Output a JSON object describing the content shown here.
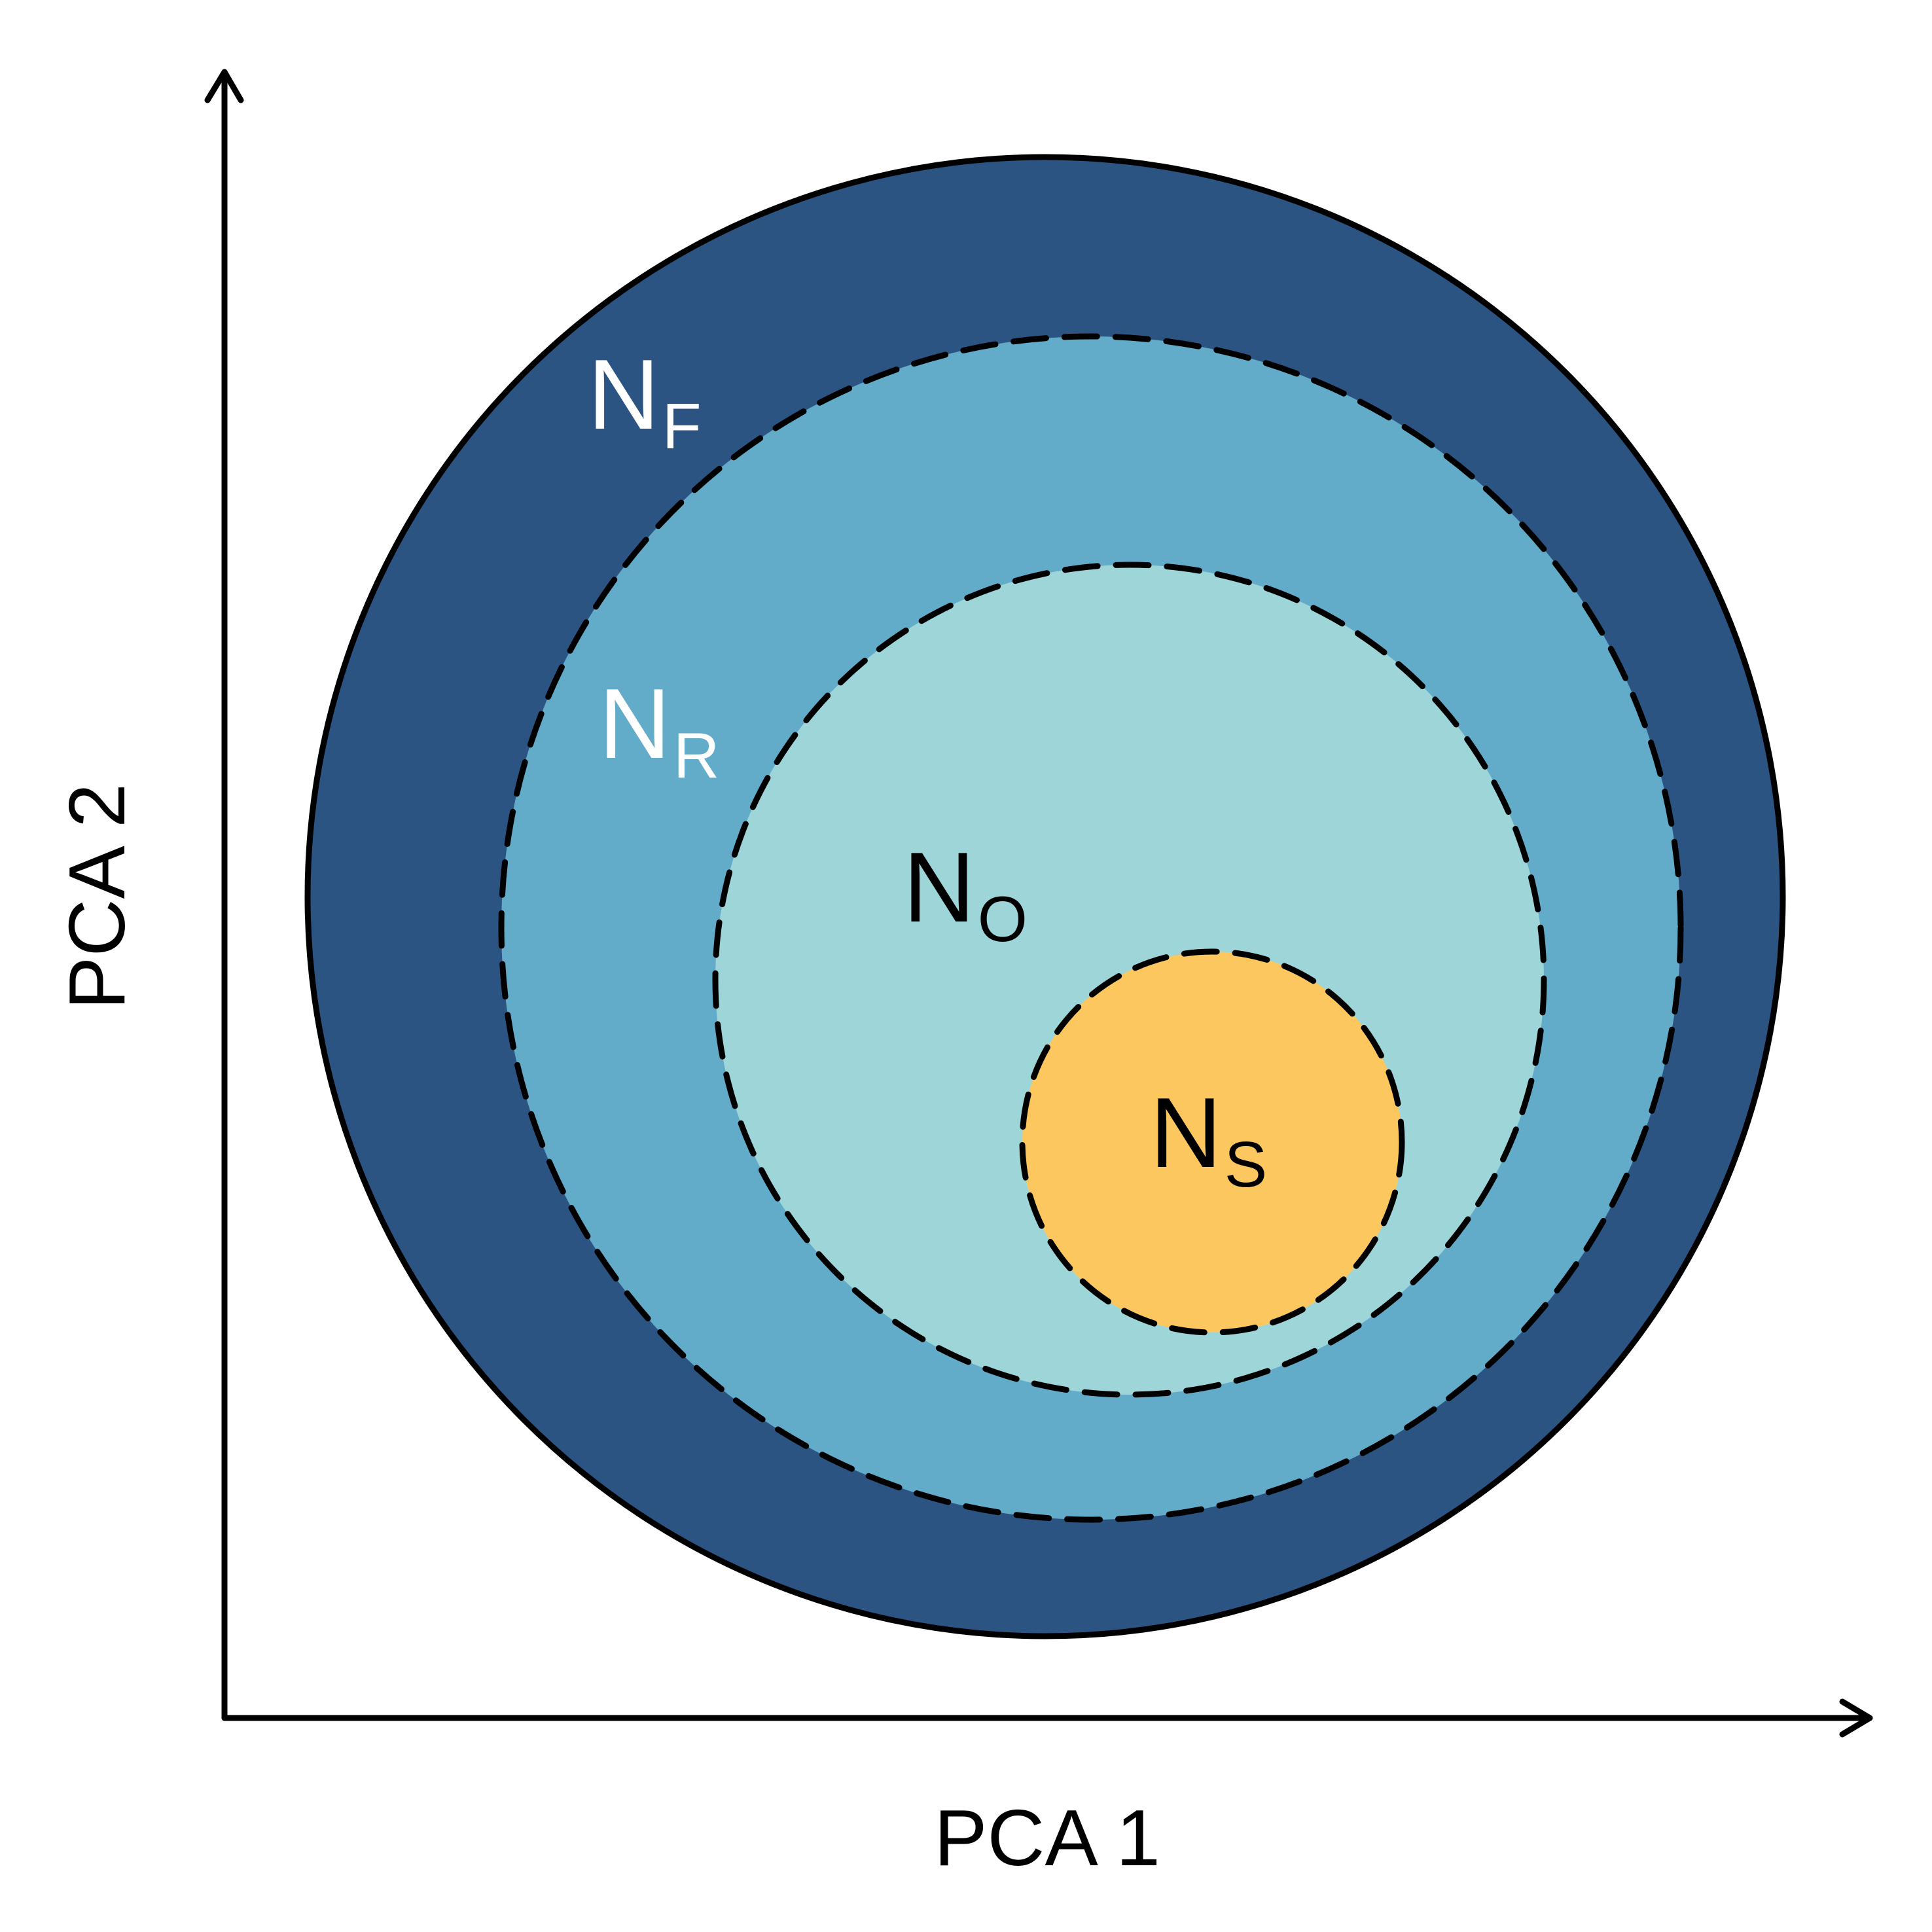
{
  "axes": {
    "x_label": "PCA 1",
    "y_label": "PCA 2"
  },
  "colors": {
    "fundamental": "#2c5483",
    "realized": "#62abc9",
    "occupied": "#9dd5d8",
    "sampled": "#fcc75f",
    "label_light": "#ffffff",
    "label_dark": "#000000"
  },
  "regions": [
    {
      "id": "fundamental",
      "main": "N",
      "sub": "F",
      "border": "solid"
    },
    {
      "id": "realized",
      "main": "N",
      "sub": "R",
      "border": "dashed"
    },
    {
      "id": "occupied",
      "main": "N",
      "sub": "O",
      "border": "dashed"
    },
    {
      "id": "sampled",
      "main": "N",
      "sub": "S",
      "border": "dashed"
    }
  ]
}
